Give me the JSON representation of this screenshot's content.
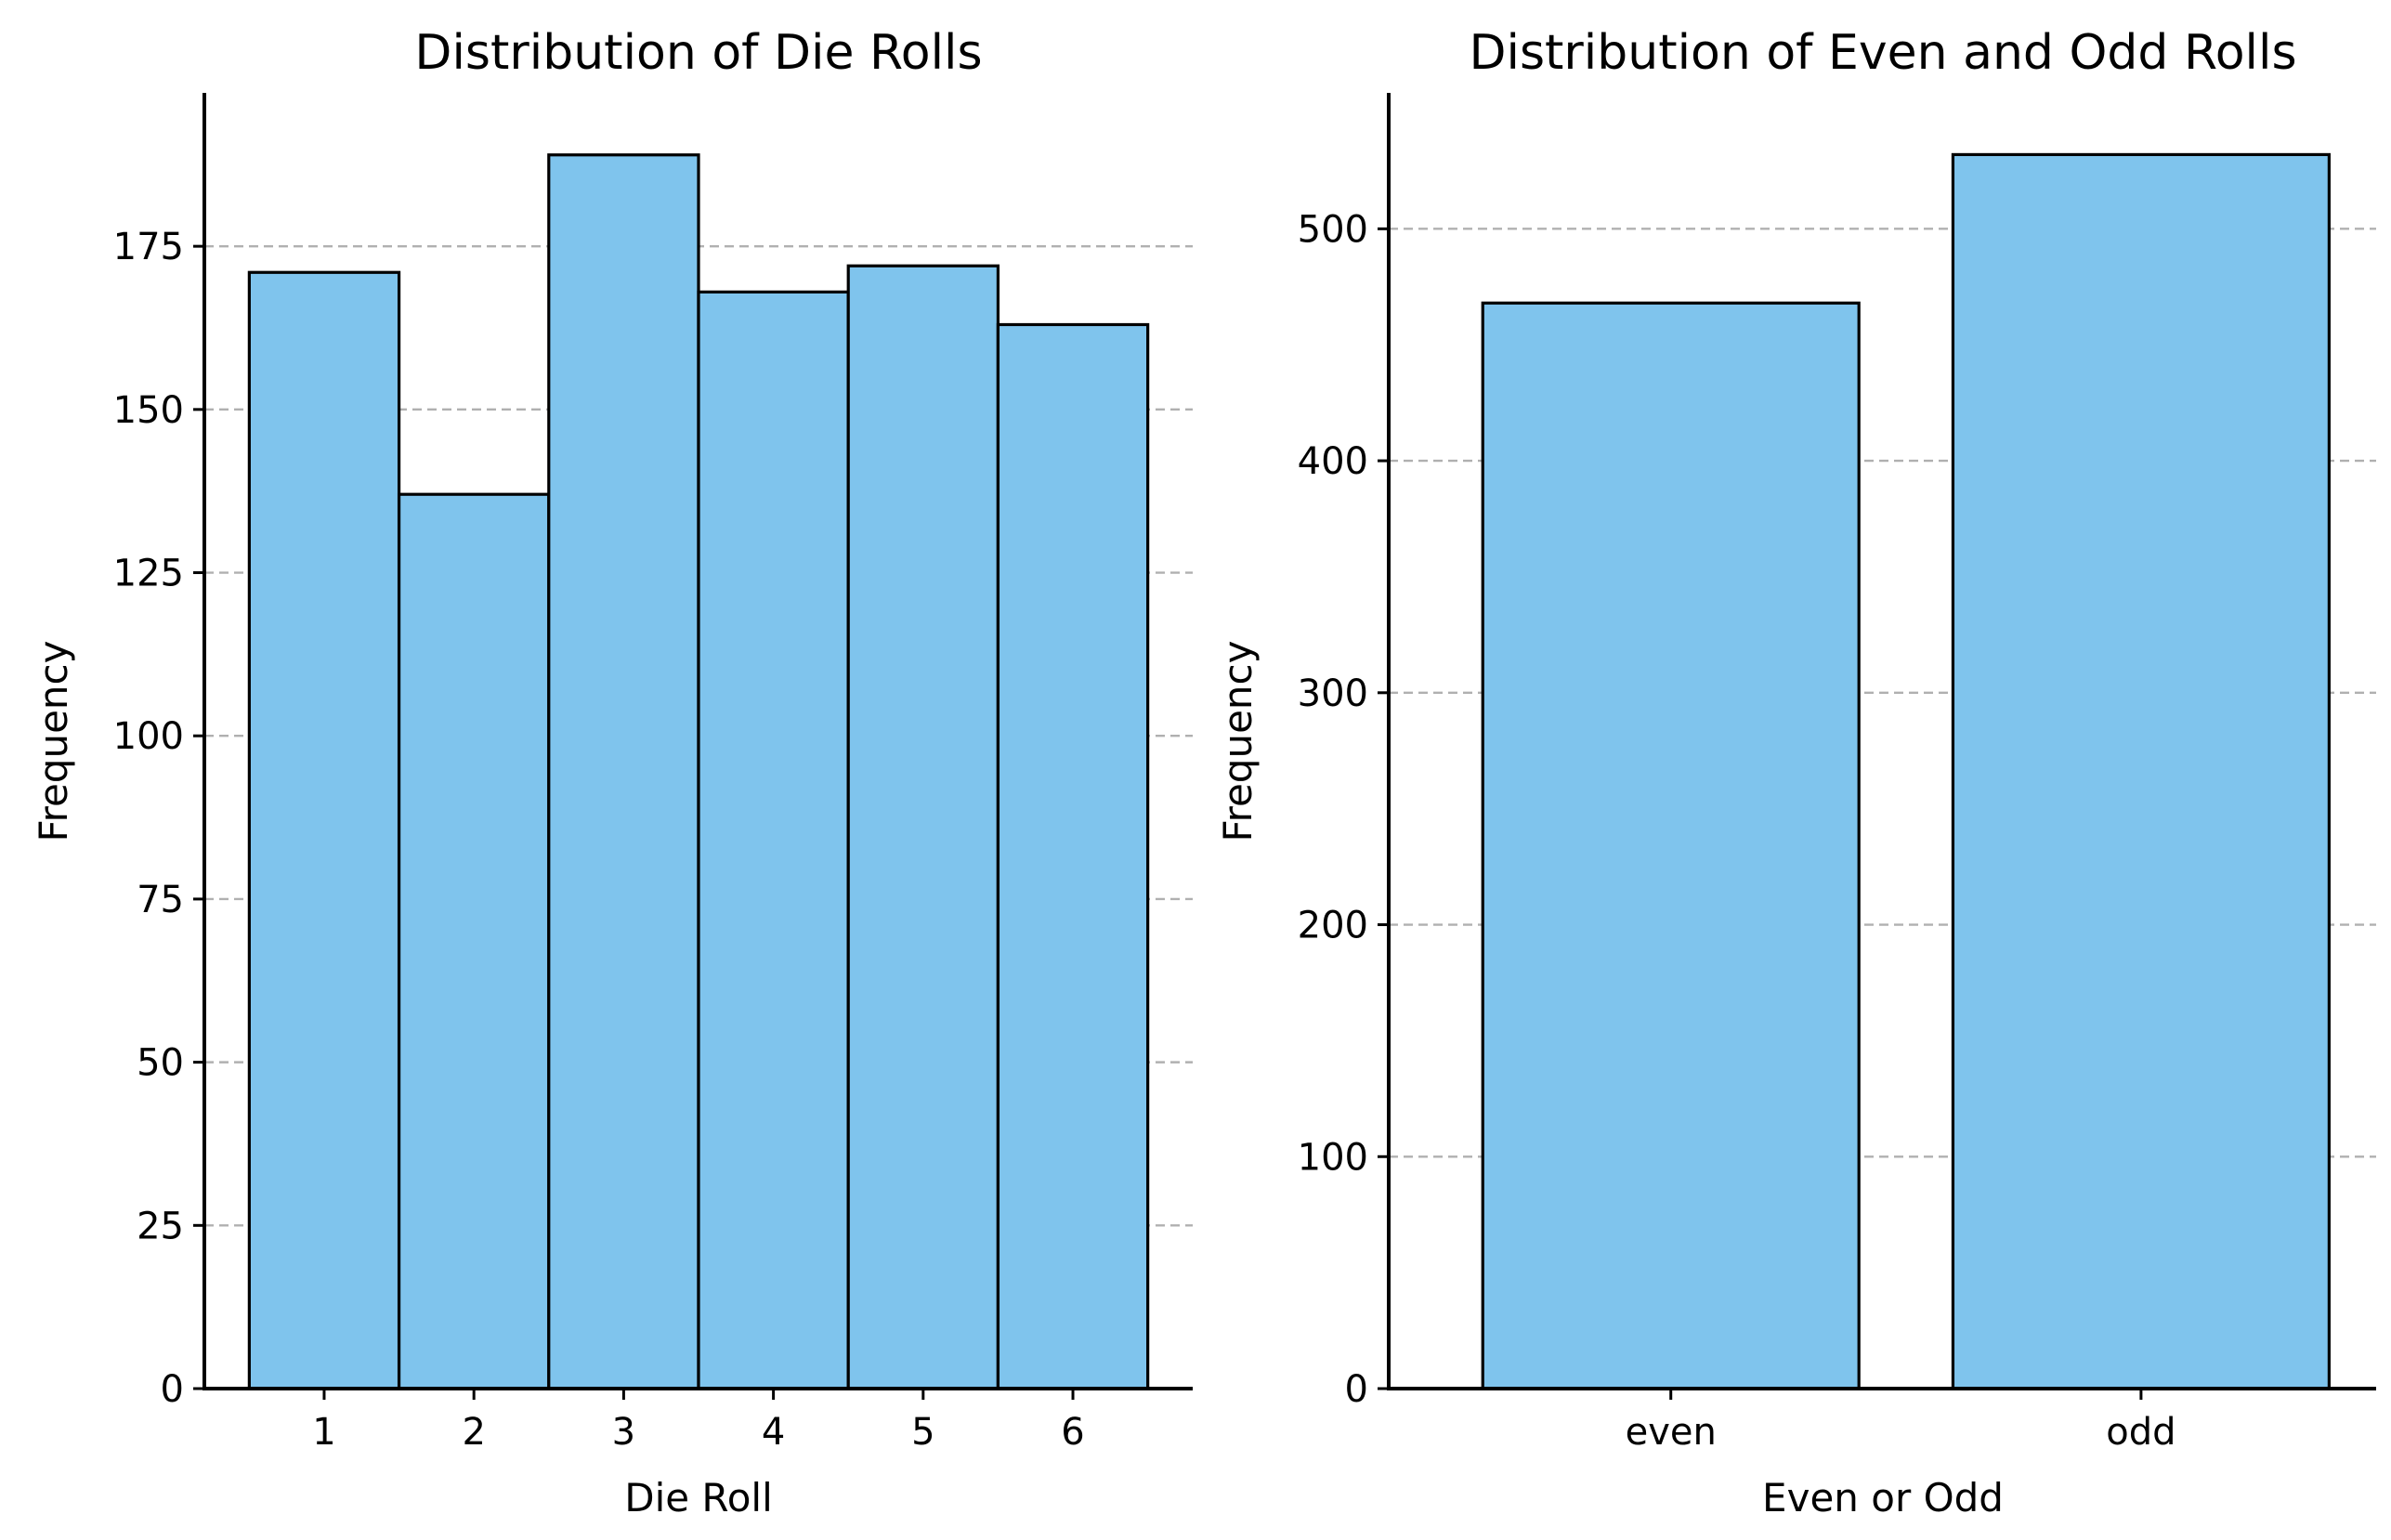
{
  "chart_data": [
    {
      "type": "bar",
      "title": "Distribution of Die Rolls",
      "xlabel": "Die Roll",
      "ylabel": "Frequency",
      "categories": [
        "1",
        "2",
        "3",
        "4",
        "5",
        "6"
      ],
      "values": [
        171,
        137,
        189,
        168,
        172,
        163
      ],
      "ylim": [
        0,
        198.5
      ],
      "yticks": [
        0,
        25,
        50,
        75,
        100,
        125,
        150,
        175
      ],
      "bar_width": 1.0,
      "grid": "y",
      "bar_color": "#7fc4ed",
      "edge_color": "#000000",
      "grid_color": "#b0b0b0"
    },
    {
      "type": "bar",
      "title": "Distribution of Even and Odd Rolls",
      "xlabel": "Even or Odd",
      "ylabel": "Frequency",
      "categories": [
        "even",
        "odd"
      ],
      "values": [
        468,
        532
      ],
      "ylim": [
        0,
        558.6
      ],
      "yticks": [
        0,
        100,
        200,
        300,
        400,
        500
      ],
      "bar_width": 0.8,
      "grid": "y",
      "bar_color": "#7fc4ed",
      "edge_color": "#000000",
      "grid_color": "#b0b0b0"
    }
  ]
}
